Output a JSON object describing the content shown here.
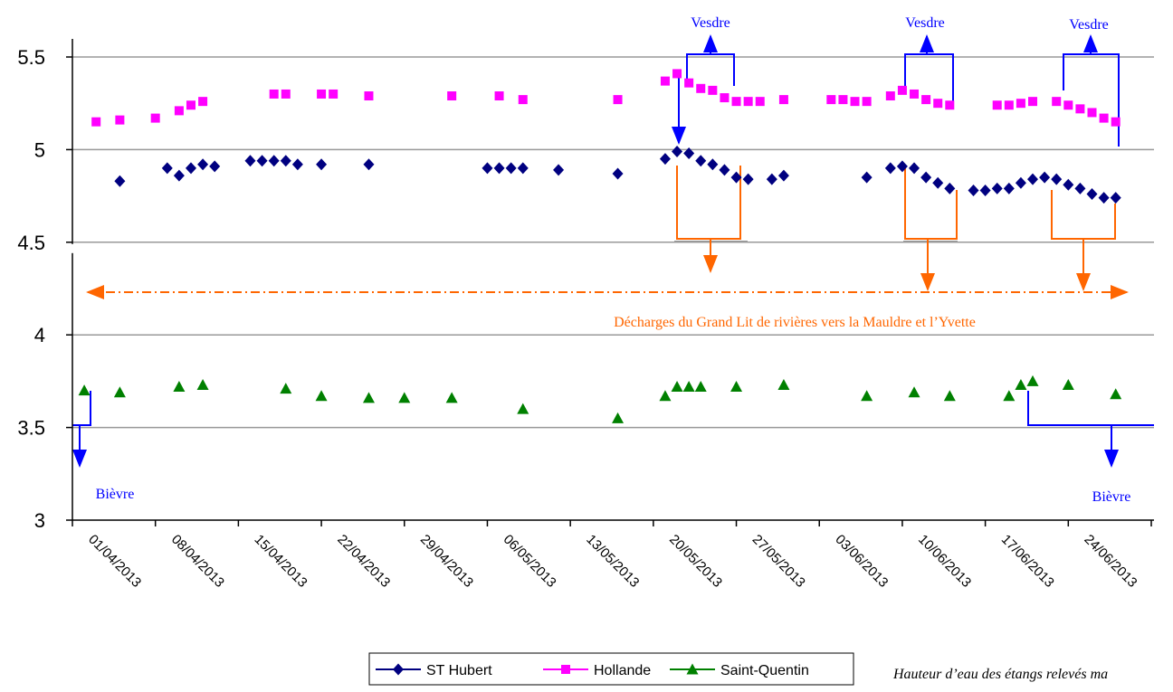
{
  "chart_data": {
    "type": "scatter",
    "xlim": [
      "2013-04-01",
      "2013-07-01"
    ],
    "xticks": [
      {
        "value": "2013-04-01",
        "label": "01/04/2013"
      },
      {
        "value": "2013-04-08",
        "label": "08/04/2013"
      },
      {
        "value": "2013-04-15",
        "label": "15/04/2013"
      },
      {
        "value": "2013-04-22",
        "label": "22/04/2013"
      },
      {
        "value": "2013-04-29",
        "label": "29/04/2013"
      },
      {
        "value": "2013-05-06",
        "label": "06/05/2013"
      },
      {
        "value": "2013-05-13",
        "label": "13/05/2013"
      },
      {
        "value": "2013-05-20",
        "label": "20/05/2013"
      },
      {
        "value": "2013-05-27",
        "label": "27/05/2013"
      },
      {
        "value": "2013-06-03",
        "label": "03/06/2013"
      },
      {
        "value": "2013-06-10",
        "label": "10/06/2013"
      },
      {
        "value": "2013-06-17",
        "label": "17/06/2013"
      },
      {
        "value": "2013-06-24",
        "label": "24/06/2013"
      }
    ],
    "ylim": [
      3,
      5.5
    ],
    "yticks": [
      3,
      3.5,
      4,
      4.5,
      5,
      5.5
    ],
    "grid": true,
    "legend": "bottom",
    "series": [
      {
        "name": "ST Hubert",
        "color": "#000080",
        "marker": "diamond",
        "x": [
          "2013-04-05",
          "2013-04-09",
          "2013-04-10",
          "2013-04-11",
          "2013-04-12",
          "2013-04-13",
          "2013-04-16",
          "2013-04-17",
          "2013-04-18",
          "2013-04-19",
          "2013-04-20",
          "2013-04-22",
          "2013-04-26",
          "2013-05-06",
          "2013-05-07",
          "2013-05-08",
          "2013-05-09",
          "2013-05-12",
          "2013-05-17",
          "2013-05-21",
          "2013-05-22",
          "2013-05-23",
          "2013-05-24",
          "2013-05-25",
          "2013-05-26",
          "2013-05-27",
          "2013-05-28",
          "2013-05-30",
          "2013-05-31",
          "2013-06-07",
          "2013-06-09",
          "2013-06-10",
          "2013-06-11",
          "2013-06-12",
          "2013-06-13",
          "2013-06-14",
          "2013-06-16",
          "2013-06-17",
          "2013-06-18",
          "2013-06-19",
          "2013-06-20",
          "2013-06-21",
          "2013-06-22",
          "2013-06-23",
          "2013-06-24",
          "2013-06-25",
          "2013-06-26",
          "2013-06-27",
          "2013-06-28"
        ],
        "values": [
          4.83,
          4.9,
          4.86,
          4.9,
          4.92,
          4.91,
          4.94,
          4.94,
          4.94,
          4.94,
          4.92,
          4.92,
          4.92,
          4.9,
          4.9,
          4.9,
          4.9,
          4.89,
          4.87,
          4.95,
          4.99,
          4.98,
          4.94,
          4.92,
          4.89,
          4.85,
          4.84,
          4.84,
          4.86,
          4.85,
          4.9,
          4.91,
          4.9,
          4.85,
          4.82,
          4.79,
          4.78,
          4.78,
          4.79,
          4.79,
          4.82,
          4.84,
          4.85,
          4.84,
          4.81,
          4.79,
          4.76,
          4.74,
          4.74
        ]
      },
      {
        "name": "Hollande",
        "color": "#ff00ff",
        "marker": "square",
        "x": [
          "2013-04-03",
          "2013-04-05",
          "2013-04-08",
          "2013-04-10",
          "2013-04-11",
          "2013-04-12",
          "2013-04-18",
          "2013-04-19",
          "2013-04-22",
          "2013-04-23",
          "2013-04-26",
          "2013-05-03",
          "2013-05-07",
          "2013-05-09",
          "2013-05-17",
          "2013-05-21",
          "2013-05-22",
          "2013-05-23",
          "2013-05-24",
          "2013-05-25",
          "2013-05-26",
          "2013-05-27",
          "2013-05-28",
          "2013-05-29",
          "2013-05-31",
          "2013-06-04",
          "2013-06-05",
          "2013-06-06",
          "2013-06-07",
          "2013-06-09",
          "2013-06-10",
          "2013-06-11",
          "2013-06-12",
          "2013-06-13",
          "2013-06-14",
          "2013-06-18",
          "2013-06-19",
          "2013-06-20",
          "2013-06-21",
          "2013-06-23",
          "2013-06-24",
          "2013-06-25",
          "2013-06-26",
          "2013-06-27",
          "2013-06-28"
        ],
        "values": [
          5.15,
          5.16,
          5.17,
          5.21,
          5.24,
          5.26,
          5.3,
          5.3,
          5.3,
          5.3,
          5.29,
          5.29,
          5.29,
          5.27,
          5.27,
          5.37,
          5.41,
          5.36,
          5.33,
          5.32,
          5.28,
          5.26,
          5.26,
          5.26,
          5.27,
          5.27,
          5.27,
          5.26,
          5.26,
          5.29,
          5.32,
          5.3,
          5.27,
          5.25,
          5.24,
          5.24,
          5.24,
          5.25,
          5.26,
          5.26,
          5.24,
          5.22,
          5.2,
          5.17,
          5.15
        ]
      },
      {
        "name": "Saint-Quentin",
        "color": "#008000",
        "marker": "triangle",
        "x": [
          "2013-04-02",
          "2013-04-05",
          "2013-04-10",
          "2013-04-12",
          "2013-04-19",
          "2013-04-22",
          "2013-04-26",
          "2013-04-29",
          "2013-05-03",
          "2013-05-09",
          "2013-05-17",
          "2013-05-21",
          "2013-05-22",
          "2013-05-23",
          "2013-05-24",
          "2013-05-27",
          "2013-05-31",
          "2013-06-07",
          "2013-06-11",
          "2013-06-14",
          "2013-06-19",
          "2013-06-20",
          "2013-06-21",
          "2013-06-24",
          "2013-06-28"
        ],
        "values": [
          3.7,
          3.69,
          3.72,
          3.73,
          3.71,
          3.67,
          3.66,
          3.66,
          3.66,
          3.6,
          3.55,
          3.67,
          3.72,
          3.72,
          3.72,
          3.72,
          3.73,
          3.67,
          3.69,
          3.67,
          3.67,
          3.73,
          3.75,
          3.73,
          3.68
        ]
      }
    ],
    "annotations": [
      "Vesdre",
      "Vesdre",
      "Vesdre",
      "Bièvre",
      "Bièvre",
      "Décharges du Grand Lit de rivières vers la Mauldre et l’Yvette"
    ],
    "note": "Hauteur d’eau des étangs relevés ma"
  }
}
